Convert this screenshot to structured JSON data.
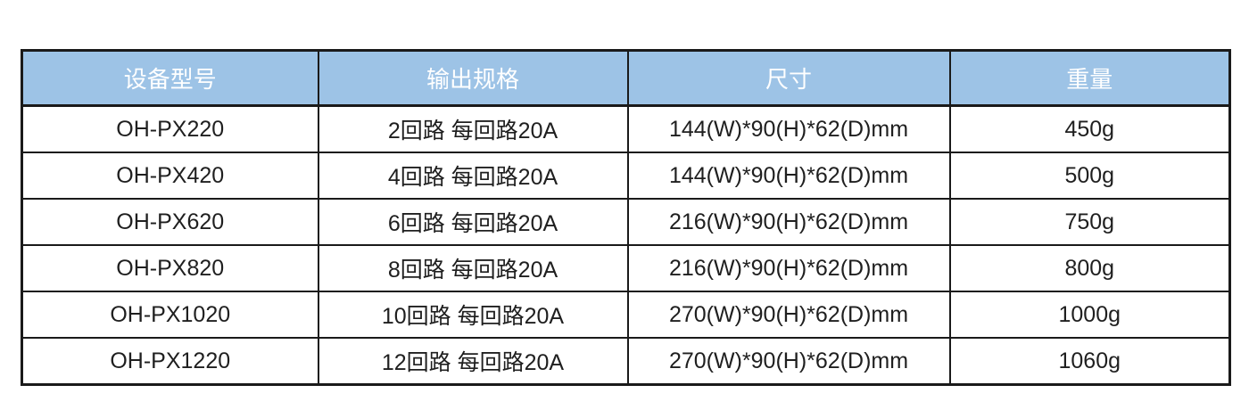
{
  "table": {
    "headers": [
      "设备型号",
      "输出规格",
      "尺寸",
      "重量"
    ],
    "rows": [
      [
        "OH-PX220",
        "2回路 每回路20A",
        "144(W)*90(H)*62(D)mm",
        "450g"
      ],
      [
        "OH-PX420",
        "4回路 每回路20A",
        "144(W)*90(H)*62(D)mm",
        "500g"
      ],
      [
        "OH-PX620",
        "6回路 每回路20A",
        "216(W)*90(H)*62(D)mm",
        "750g"
      ],
      [
        "OH-PX820",
        "8回路 每回路20A",
        "216(W)*90(H)*62(D)mm",
        "800g"
      ],
      [
        "OH-PX1020",
        "10回路 每回路20A",
        "270(W)*90(H)*62(D)mm",
        "1000g"
      ],
      [
        "OH-PX1220",
        "12回路 每回路20A",
        "270(W)*90(H)*62(D)mm",
        "1060g"
      ]
    ],
    "colors": {
      "header_bg": "#9DC3E6",
      "header_text": "#FFFFFF",
      "border": "#1A1A1A",
      "cell_text": "#1F1F1F"
    }
  }
}
